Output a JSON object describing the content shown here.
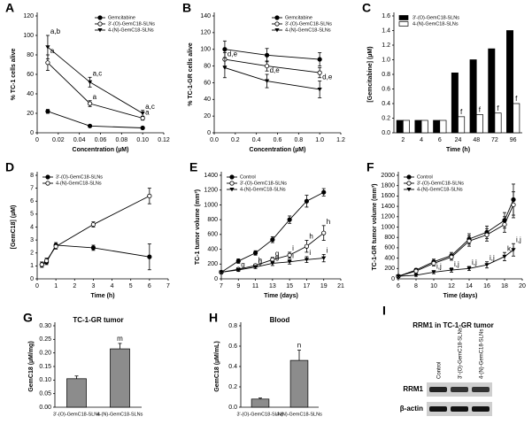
{
  "chart_data": [
    {
      "panel": "A",
      "type": "line",
      "xlabel": "Concentration (µM)",
      "ylabel": "% TC-1 cells alive",
      "x": [
        0.01,
        0.05,
        0.1
      ],
      "xlim": [
        0,
        0.12
      ],
      "xticks": [
        0,
        0.02,
        0.04,
        0.06,
        0.08,
        {
          "value": 0.1,
          "label": "0.10"
        },
        0.12
      ],
      "ylim": [
        0,
        120
      ],
      "yticks": [
        0,
        20,
        40,
        60,
        80,
        100,
        120
      ],
      "legend": "upper right",
      "series": [
        {
          "name": "Gemcitabine",
          "color": "#000000",
          "marker": "circle-filled",
          "values": [
            22,
            7,
            5
          ],
          "errors": [
            2,
            1,
            1
          ]
        },
        {
          "name": "3'-(O)-GemC18-SLNs",
          "color": "#000000",
          "marker": "circle-open",
          "values": [
            72,
            30,
            15
          ],
          "errors": [
            8,
            3,
            2
          ],
          "labels": [
            "a",
            "a",
            "a"
          ]
        },
        {
          "name": "4-(N)-GemC18-SLNs",
          "color": "#000000",
          "marker": "triangle-down",
          "values": [
            88,
            52,
            20
          ],
          "errors": [
            12,
            5,
            3
          ],
          "labels": [
            "a,b",
            "a,c",
            "a,c"
          ]
        }
      ]
    },
    {
      "panel": "B",
      "type": "line",
      "xlabel": "Concentration (µM)",
      "ylabel": "% TC-1-GR cells alive",
      "x": [
        0.1,
        0.5,
        1.0
      ],
      "xlim": [
        0,
        1.2
      ],
      "xticks": [
        {
          "value": 0,
          "label": "0.0"
        },
        0.2,
        0.4,
        0.6,
        0.8,
        {
          "value": 1,
          "label": "1.0"
        },
        1.2
      ],
      "ylim": [
        0,
        140
      ],
      "yticks": [
        0,
        20,
        40,
        60,
        80,
        100,
        120,
        140
      ],
      "legend": "upper right",
      "series": [
        {
          "name": "Gemcitabine",
          "color": "#000000",
          "marker": "circle-filled",
          "values": [
            100,
            93,
            88
          ],
          "errors": [
            10,
            8,
            8
          ]
        },
        {
          "name": "3'-(O)-GemC18-SLNs",
          "color": "#000000",
          "marker": "circle-open",
          "values": [
            88,
            80,
            72
          ],
          "errors": [
            8,
            6,
            6
          ]
        },
        {
          "name": "4-(N)-GemC18-SLNs",
          "color": "#000000",
          "marker": "triangle-down",
          "values": [
            78,
            62,
            52
          ],
          "errors": [
            12,
            8,
            10
          ],
          "labels": [
            "d,e",
            "d,e",
            "d,e"
          ]
        }
      ]
    },
    {
      "panel": "C",
      "type": "bar",
      "xlabel": "Time (h)",
      "ylabel": "[Gemcitabine] (µM)",
      "categories": [
        "2",
        "4",
        "6",
        "24",
        "48",
        "72",
        "96"
      ],
      "ylim": [
        0,
        1.6
      ],
      "yticks": [
        {
          "value": 0,
          "label": "0.0"
        },
        0.2,
        0.4,
        0.6,
        0.8,
        {
          "value": 1,
          "label": "1.0"
        },
        1.2,
        1.4,
        1.6
      ],
      "legend": "upper left",
      "series": [
        {
          "name": "3'-(O)-GemC18-SLNs",
          "color": "#000000",
          "values": [
            0.17,
            0.17,
            0.17,
            0.82,
            1.0,
            1.15,
            1.4
          ]
        },
        {
          "name": "4-(N)-GemC18-SLNs",
          "color": "#ffffff",
          "values": [
            0.17,
            0.17,
            0.17,
            0.22,
            0.25,
            0.27,
            0.4
          ],
          "labels": [
            null,
            null,
            null,
            "f",
            "f",
            "f",
            "f"
          ]
        }
      ]
    },
    {
      "panel": "D",
      "type": "line",
      "xlabel": "Time (h)",
      "ylabel": "[GemC18] (µM)",
      "x": [
        0.25,
        0.5,
        1,
        3,
        6
      ],
      "xlim": [
        0,
        7
      ],
      "xticks": [
        0,
        1,
        2,
        3,
        4,
        5,
        6,
        7
      ],
      "ylim": [
        0,
        8
      ],
      "yticks": [
        0,
        1,
        2,
        3,
        4,
        5,
        6,
        7,
        8
      ],
      "legend": "upper left",
      "series": [
        {
          "name": "3'-(O)-GemC18-SLNs",
          "color": "#000000",
          "marker": "circle-filled",
          "values": [
            1.1,
            1.3,
            2.6,
            2.4,
            1.7
          ],
          "errors": [
            0.2,
            0.2,
            0.2,
            0.2,
            1.0
          ]
        },
        {
          "name": "4-(N)-GemC18-SLNs",
          "color": "#000000",
          "marker": "circle-open",
          "values": [
            1.1,
            1.4,
            2.5,
            4.2,
            6.4
          ],
          "errors": [
            0.2,
            0.2,
            0.2,
            0.2,
            0.6
          ]
        }
      ]
    },
    {
      "panel": "E",
      "type": "line",
      "xlabel": "Time (days)",
      "ylabel": "TC-1 tumor volume (mm³)",
      "x": [
        7,
        9,
        11,
        13,
        15,
        17,
        19
      ],
      "xlim": [
        7,
        21
      ],
      "xticks": [
        7,
        9,
        11,
        13,
        15,
        17,
        19,
        21
      ],
      "ylim": [
        0,
        1400
      ],
      "yticks": [
        0,
        200,
        400,
        600,
        800,
        1000,
        1200,
        1400
      ],
      "legend": "upper left",
      "series": [
        {
          "name": "Control",
          "color": "#000000",
          "marker": "circle-filled",
          "values": [
            90,
            240,
            350,
            530,
            800,
            1050,
            1170
          ],
          "errors": [
            10,
            30,
            30,
            40,
            50,
            80,
            50
          ]
        },
        {
          "name": "3'-(O)-GemC18-SLNs",
          "color": "#000000",
          "marker": "circle-open",
          "values": [
            90,
            130,
            180,
            260,
            320,
            440,
            620
          ],
          "errors": [
            10,
            20,
            20,
            30,
            40,
            80,
            100
          ],
          "labels": [
            null,
            null,
            "h",
            "g",
            "i",
            "h",
            "h"
          ]
        },
        {
          "name": "4-(N)-GemC18-SLNs",
          "color": "#000000",
          "marker": "triangle-down",
          "values": [
            90,
            120,
            160,
            210,
            230,
            260,
            280
          ],
          "errors": [
            10,
            20,
            20,
            30,
            30,
            40,
            50
          ],
          "labels": [
            null,
            "g",
            "g",
            "g",
            "i",
            "i",
            "i"
          ]
        }
      ]
    },
    {
      "panel": "F",
      "type": "line",
      "xlabel": "Time (days)",
      "ylabel": "TC-1-GR tumor volume (mm³)",
      "x": [
        6,
        8,
        10,
        12,
        14,
        16,
        18,
        19
      ],
      "xlim": [
        6,
        20
      ],
      "xticks": [
        6,
        8,
        10,
        12,
        14,
        16,
        18,
        20
      ],
      "ylim": [
        0,
        2000
      ],
      "yticks": [
        0,
        200,
        400,
        600,
        800,
        1000,
        1200,
        1400,
        1600,
        1800,
        2000
      ],
      "legend": "upper left",
      "series": [
        {
          "name": "Control",
          "color": "#000000",
          "marker": "circle-filled",
          "values": [
            50,
            170,
            330,
            450,
            770,
            900,
            1130,
            1530
          ],
          "errors": [
            20,
            30,
            50,
            60,
            100,
            120,
            150,
            300
          ]
        },
        {
          "name": "3'-(O)-GemC18-SLNs",
          "color": "#000000",
          "marker": "circle-open",
          "values": [
            50,
            150,
            300,
            420,
            730,
            850,
            1050,
            1430
          ],
          "errors": [
            20,
            30,
            50,
            60,
            100,
            120,
            150,
            250
          ]
        },
        {
          "name": "4-(N)-GemC18-SLNs",
          "color": "#000000",
          "marker": "triangle-down",
          "values": [
            50,
            70,
            130,
            170,
            200,
            270,
            430,
            560
          ],
          "errors": [
            20,
            20,
            30,
            40,
            40,
            60,
            80,
            120
          ],
          "labels": [
            null,
            null,
            "i,j",
            "i,j",
            "i,j",
            "i,j",
            "k,l",
            "i,j"
          ]
        }
      ]
    },
    {
      "panel": "G",
      "type": "bar",
      "title": "TC-1-GR tumor",
      "ylabel": "GemC18 (µM/mg)",
      "categories": [
        "3'-(O)-GemC18-SLNs",
        "4-(N)-GemC18-SLNs"
      ],
      "values": [
        0.105,
        0.215
      ],
      "errors": [
        0.01,
        0.02
      ],
      "labels": [
        null,
        "m"
      ],
      "color": "#8c8c8c",
      "ylim": [
        0,
        0.3
      ],
      "yticks": [
        {
          "value": 0,
          "label": "0.00"
        },
        0.05,
        {
          "value": 0.1,
          "label": "0.10"
        },
        0.15,
        {
          "value": 0.2,
          "label": "0.20"
        },
        0.25,
        {
          "value": 0.3,
          "label": "0.30"
        }
      ]
    },
    {
      "panel": "H",
      "type": "bar",
      "title": "Blood",
      "ylabel": "GemC18 (µM/mL)",
      "categories": [
        "3'-(O)-GemC18-SLNs",
        "4-(N)-GemC18-SLNs"
      ],
      "values": [
        0.08,
        0.46
      ],
      "errors": [
        0.01,
        0.1
      ],
      "labels": [
        null,
        "n"
      ],
      "color": "#8c8c8c",
      "ylim": [
        0,
        0.8
      ],
      "yticks": [
        {
          "value": 0,
          "label": "0.0"
        },
        0.2,
        0.4,
        0.6,
        0.8
      ]
    }
  ],
  "blot": {
    "panel": "I",
    "title": "RRM1 in TC-1-GR tumor",
    "columns": [
      "Control",
      "3'-(O)-GemC18-SLNs",
      "4-(N)-GemC18-SLNs"
    ],
    "rows": [
      "RRM1",
      "β-actin"
    ]
  }
}
